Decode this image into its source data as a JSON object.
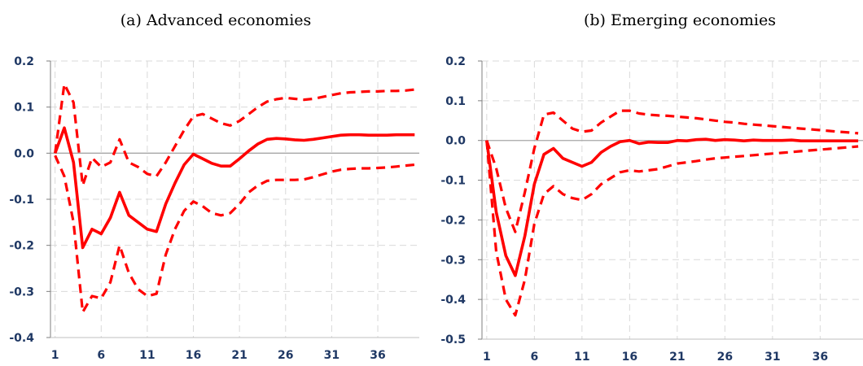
{
  "chart_data": [
    {
      "type": "line",
      "title": "(a) Advanced economies",
      "xlabel": "",
      "ylabel": "",
      "x_ticks": [
        "1",
        "6",
        "11",
        "16",
        "21",
        "26",
        "31",
        "36"
      ],
      "y_ticks": [
        "0.2",
        "0.1",
        "0.0",
        "-0.1",
        "-0.2",
        "-0.3",
        "-0.4"
      ],
      "xlim": [
        1,
        40
      ],
      "ylim": [
        -0.4,
        0.2
      ],
      "grid": true,
      "colors": {
        "series": "#ff0000",
        "zero_line": "#a6a6a6",
        "grid": "#d9d9d9",
        "ticks": "#1f3864"
      },
      "series": [
        {
          "style": "solid",
          "values": [
            0.0,
            0.055,
            -0.02,
            -0.205,
            -0.165,
            -0.175,
            -0.14,
            -0.085,
            -0.135,
            -0.15,
            -0.165,
            -0.17,
            -0.11,
            -0.065,
            -0.025,
            -0.002,
            -0.012,
            -0.022,
            -0.028,
            -0.028,
            -0.012,
            0.005,
            0.02,
            0.03,
            0.032,
            0.031,
            0.029,
            0.028,
            0.03,
            0.033,
            0.036,
            0.039,
            0.04,
            0.04,
            0.039,
            0.039,
            0.039,
            0.04,
            0.04,
            0.04
          ]
        },
        {
          "style": "dashed",
          "values": [
            0.0,
            0.15,
            0.11,
            -0.07,
            -0.01,
            -0.03,
            -0.02,
            0.03,
            -0.02,
            -0.03,
            -0.045,
            -0.05,
            -0.02,
            0.015,
            0.05,
            0.08,
            0.085,
            0.075,
            0.065,
            0.06,
            0.07,
            0.085,
            0.1,
            0.112,
            0.117,
            0.12,
            0.118,
            0.116,
            0.118,
            0.122,
            0.126,
            0.13,
            0.132,
            0.133,
            0.134,
            0.134,
            0.135,
            0.135,
            0.136,
            0.138
          ]
        },
        {
          "style": "dashed",
          "values": [
            -0.005,
            -0.05,
            -0.15,
            -0.345,
            -0.31,
            -0.315,
            -0.28,
            -0.2,
            -0.26,
            -0.295,
            -0.31,
            -0.305,
            -0.22,
            -0.165,
            -0.125,
            -0.105,
            -0.115,
            -0.13,
            -0.135,
            -0.13,
            -0.11,
            -0.085,
            -0.07,
            -0.06,
            -0.058,
            -0.058,
            -0.058,
            -0.057,
            -0.052,
            -0.046,
            -0.04,
            -0.036,
            -0.034,
            -0.033,
            -0.033,
            -0.032,
            -0.031,
            -0.029,
            -0.027,
            -0.025
          ]
        }
      ]
    },
    {
      "type": "line",
      "title": "(b) Emerging economies",
      "xlabel": "",
      "ylabel": "",
      "x_ticks": [
        "1",
        "6",
        "11",
        "16",
        "21",
        "26",
        "31",
        "36"
      ],
      "y_ticks": [
        "0.2",
        "0.1",
        "0.0",
        "-0.1",
        "-0.2",
        "-0.3",
        "-0.4",
        "-0.5"
      ],
      "xlim": [
        1,
        40
      ],
      "ylim": [
        -0.5,
        0.2
      ],
      "grid": true,
      "colors": {
        "series": "#ff0000",
        "zero_line": "#a6a6a6",
        "grid": "#d9d9d9",
        "ticks": "#1f3864"
      },
      "series": [
        {
          "style": "solid",
          "values": [
            0.0,
            -0.18,
            -0.29,
            -0.34,
            -0.24,
            -0.11,
            -0.035,
            -0.02,
            -0.045,
            -0.055,
            -0.065,
            -0.055,
            -0.03,
            -0.015,
            -0.003,
            0.0,
            -0.008,
            -0.004,
            -0.005,
            -0.005,
            0.0,
            -0.001,
            0.002,
            0.003,
            0.0,
            0.002,
            0.001,
            -0.001,
            0.001,
            0.0,
            0.0,
            0.0,
            0.001,
            -0.001,
            -0.001,
            -0.001,
            -0.001,
            -0.001,
            -0.001,
            -0.001
          ]
        },
        {
          "style": "dashed",
          "values": [
            0.0,
            -0.07,
            -0.17,
            -0.23,
            -0.13,
            -0.02,
            0.065,
            0.07,
            0.05,
            0.03,
            0.022,
            0.025,
            0.045,
            0.06,
            0.075,
            0.075,
            0.068,
            0.065,
            0.063,
            0.062,
            0.06,
            0.058,
            0.056,
            0.053,
            0.05,
            0.047,
            0.045,
            0.042,
            0.04,
            0.038,
            0.036,
            0.034,
            0.032,
            0.03,
            0.028,
            0.026,
            0.024,
            0.022,
            0.02,
            0.018
          ]
        },
        {
          "style": "dashed",
          "values": [
            0.0,
            -0.28,
            -0.4,
            -0.44,
            -0.35,
            -0.21,
            -0.135,
            -0.115,
            -0.135,
            -0.145,
            -0.15,
            -0.135,
            -0.11,
            -0.095,
            -0.08,
            -0.075,
            -0.078,
            -0.075,
            -0.072,
            -0.065,
            -0.058,
            -0.055,
            -0.052,
            -0.048,
            -0.045,
            -0.043,
            -0.041,
            -0.039,
            -0.037,
            -0.035,
            -0.033,
            -0.031,
            -0.029,
            -0.027,
            -0.025,
            -0.023,
            -0.021,
            -0.019,
            -0.017,
            -0.015
          ]
        }
      ]
    }
  ]
}
